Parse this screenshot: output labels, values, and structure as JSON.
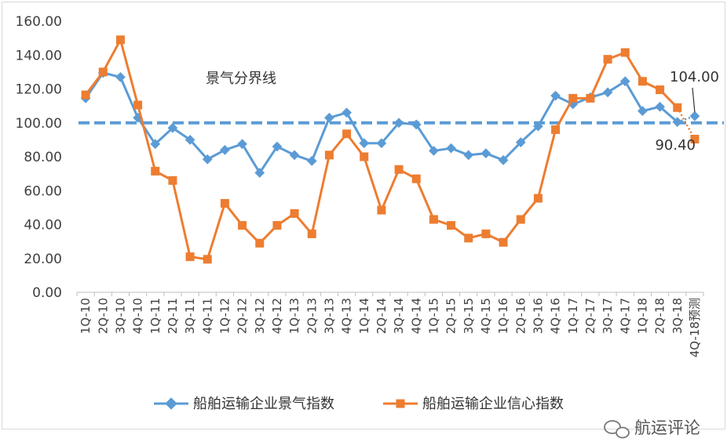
{
  "chart_data": {
    "type": "line",
    "title": "",
    "xlabel": "",
    "ylabel": "",
    "ylim": [
      0,
      160
    ],
    "yticks": [
      "0.00",
      "20.00",
      "40.00",
      "60.00",
      "80.00",
      "100.00",
      "120.00",
      "140.00",
      "160.00"
    ],
    "categories": [
      "1Q-10",
      "2Q-10",
      "3Q-10",
      "4Q-10",
      "1Q-11",
      "2Q-11",
      "3Q-11",
      "4Q-11",
      "1Q-12",
      "2Q-12",
      "3Q-12",
      "4Q-12",
      "1Q-13",
      "2Q-13",
      "3Q-13",
      "4Q-13",
      "1Q-14",
      "2Q-14",
      "3Q-14",
      "4Q-14",
      "1Q-15",
      "2Q-15",
      "3Q-15",
      "4Q-15",
      "1Q-16",
      "2Q-16",
      "3Q-16",
      "4Q-16",
      "1Q-17",
      "2Q-17",
      "3Q-17",
      "4Q-17",
      "1Q-18",
      "2Q-18",
      "3Q-18",
      "4Q-18预测"
    ],
    "tick_labels": [
      "1Q-10",
      "2Q-10",
      "3Q-10",
      "4Q-10",
      "1Q-11",
      "2Q-11",
      "3Q-11",
      "4Q-11",
      "1Q-12",
      "2Q-12",
      "3Q-12",
      "4Q-12",
      "1Q-13",
      "2Q-13",
      "3Q-13",
      "4Q-13",
      "1Q-14",
      "2Q-14",
      "3Q-14",
      "4Q-14",
      "1Q-15",
      "2Q-15",
      "3Q-15",
      "4Q-15",
      "1Q-16",
      "2Q-16",
      "3Q-16",
      "4Q-16",
      "1Q-17",
      "2Q-17",
      "3Q-17",
      "4Q-17",
      "1Q-18",
      "2Q-18",
      "3Q-18",
      "4Q-18预测"
    ],
    "series": [
      {
        "name": "船舶运输企业景气指数",
        "color": "#5B9BD5",
        "marker": "diamond",
        "values": [
          114.5,
          129.5,
          127,
          103,
          87.5,
          97,
          90,
          78.5,
          84,
          87.5,
          70.5,
          86,
          81,
          77.5,
          103,
          106,
          88,
          88,
          100,
          99,
          83.5,
          85,
          81,
          82,
          78,
          88.5,
          98,
          116,
          111,
          115,
          118,
          124.5,
          107,
          109.5,
          100.5,
          104
        ]
      },
      {
        "name": "船舶运输企业信心指数",
        "color": "#ED7D31",
        "marker": "square",
        "values": [
          116.5,
          130,
          149,
          110.5,
          71.5,
          66,
          21,
          19.5,
          52.5,
          39.5,
          29,
          39.5,
          46.5,
          34.5,
          81,
          93.5,
          80,
          48.5,
          72.5,
          67,
          43,
          39.5,
          32,
          34.5,
          29.5,
          43,
          55.5,
          96,
          114.5,
          114.5,
          137.5,
          141.5,
          124.5,
          119.5,
          109,
          90.4
        ]
      }
    ],
    "reference_line": {
      "value": 100,
      "label": "景气分界线",
      "color": "#5B9BD5"
    },
    "annotations": [
      {
        "text": "104.00",
        "series": 0,
        "category": "4Q-18预测",
        "value": 104
      },
      {
        "text": "90.40",
        "series": 1,
        "category": "4Q-18预测",
        "value": 90.4
      }
    ],
    "legend": {
      "placement": "bottom",
      "items": [
        "船舶运输企业景气指数",
        "船舶运输企业信心指数"
      ]
    },
    "grid": false
  },
  "watermark": {
    "text": "航运评论",
    "icon": "wechat-icon"
  }
}
